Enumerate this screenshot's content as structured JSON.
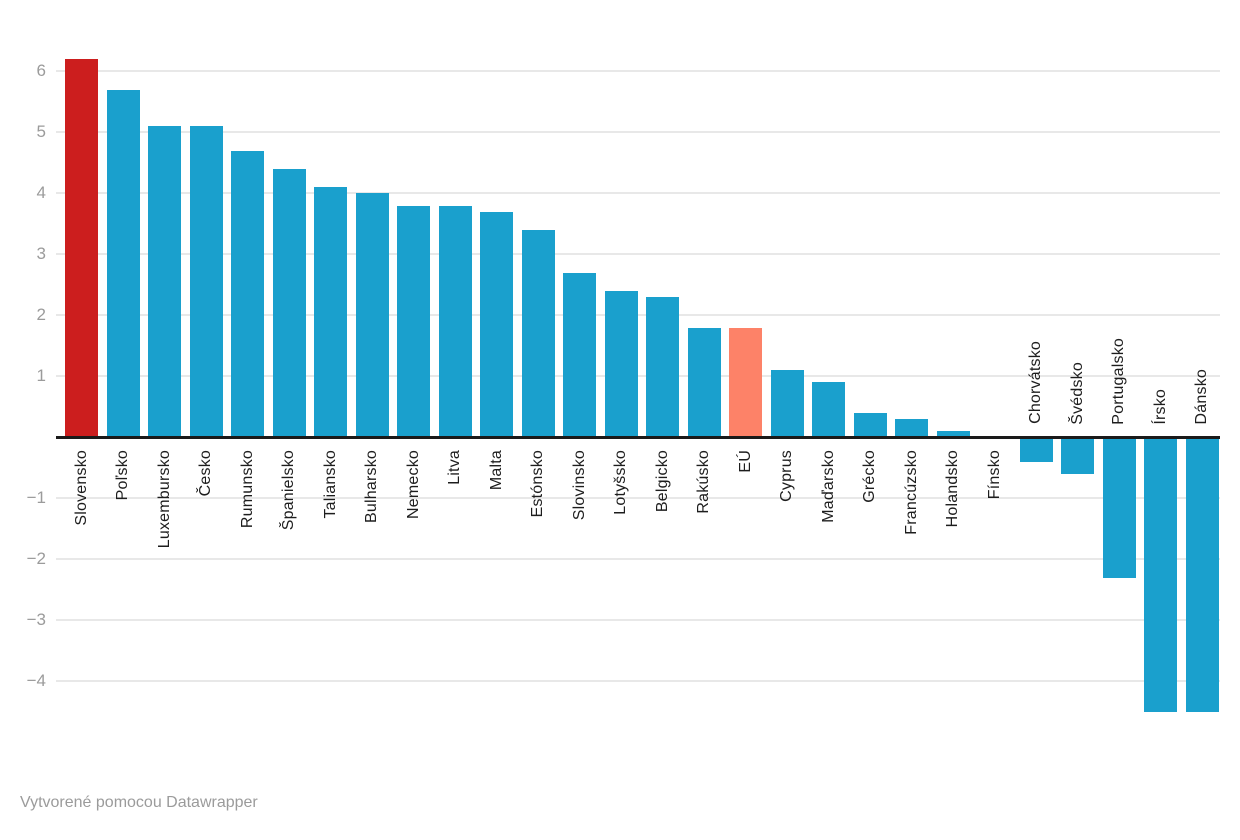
{
  "chart_data": {
    "type": "bar",
    "title": "",
    "xlabel": "",
    "ylabel": "",
    "categories": [
      "Slovensko",
      "Poľsko",
      "Luxembursko",
      "Česko",
      "Rumunsko",
      "Španielsko",
      "Taliansko",
      "Bulharsko",
      "Nemecko",
      "Litva",
      "Malta",
      "Estónsko",
      "Slovinsko",
      "Lotyšsko",
      "Belgicko",
      "Rakúsko",
      "EÚ",
      "Cyprus",
      "Maďarsko",
      "Grécko",
      "Francúzsko",
      "Holandsko",
      "Fínsko",
      "Chorvátsko",
      "Švédsko",
      "Portugalsko",
      "Írsko",
      "Dánsko"
    ],
    "values": [
      6.2,
      5.7,
      5.1,
      5.1,
      4.7,
      4.4,
      4.1,
      4.0,
      3.8,
      3.8,
      3.7,
      3.4,
      2.7,
      2.4,
      2.3,
      1.8,
      1.8,
      1.1,
      0.9,
      0.4,
      0.3,
      0.1,
      0.0,
      -0.4,
      -0.6,
      -2.3,
      -4.5,
      -4.5
    ],
    "bar_colors": {
      "default": "#1aa0cd",
      "overrides": {
        "Slovensko": "#cc1e1e",
        "EÚ": "#fd8268"
      }
    },
    "yticks": [
      6,
      5,
      4,
      3,
      2,
      1,
      -1,
      -2,
      -3,
      -4
    ],
    "ylim": [
      -4.6,
      6.35
    ],
    "grid": true,
    "legend": "none",
    "label_orientation": "vertical-bottom-to-top",
    "footer": "Vytvorené pomocou Datawrapper"
  },
  "colors": {
    "background": "#ffffff",
    "gridline": "#e8e8e8",
    "zero_axis": "#1a1a1a",
    "tick_label": "#9b9b9b",
    "category_label": "#1d1d1d",
    "footer_text": "#9b9b9b"
  }
}
